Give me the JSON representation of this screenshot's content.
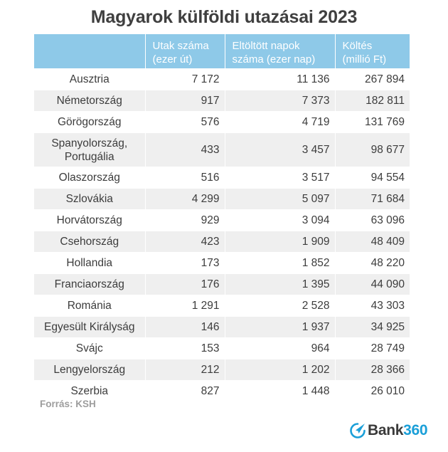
{
  "title": "Magyarok külföldi utazásai 2023",
  "columns": [
    "",
    "Utak száma\n(ezer út)",
    "Eltöltött napok\nszáma (ezer nap)",
    "Költés\n(millió Ft)"
  ],
  "source": "Forrás: KSH",
  "logo": {
    "word": "Bank",
    "number": "360",
    "accent_color": "#1a9fd8",
    "icon": "paper-plane-circle-icon"
  },
  "colors": {
    "header_bg": "#8ec9e8",
    "row_alt_bg": "#efefef"
  },
  "chart_data": {
    "type": "table",
    "title": "Magyarok külföldi utazásai 2023",
    "columns": [
      "",
      "Utak száma (ezer út)",
      "Eltöltött napok száma (ezer nap)",
      "Költés (millió Ft)"
    ],
    "rows": [
      [
        "Ausztria",
        "7 172",
        "11 136",
        "267 894"
      ],
      [
        "Németország",
        "917",
        "7 373",
        "182 811"
      ],
      [
        "Görögország",
        "576",
        "4 719",
        "131 769"
      ],
      [
        "Spanyolország,\nPortugália",
        "433",
        "3 457",
        "98 677"
      ],
      [
        "Olaszország",
        "516",
        "3 517",
        "94 554"
      ],
      [
        "Szlovákia",
        "4 299",
        "5 097",
        "71 684"
      ],
      [
        "Horvátország",
        "929",
        "3 094",
        "63 096"
      ],
      [
        "Csehország",
        "423",
        "1 909",
        "48 409"
      ],
      [
        "Hollandia",
        "173",
        "1 852",
        "48 220"
      ],
      [
        "Franciaország",
        "176",
        "1 395",
        "44 090"
      ],
      [
        "Románia",
        "1 291",
        "2 528",
        "43 303"
      ],
      [
        "Egyesült Királyság",
        "146",
        "1 937",
        "34 925"
      ],
      [
        "Svájc",
        "153",
        "964",
        "28 749"
      ],
      [
        "Lengyelország",
        "212",
        "1 202",
        "28 366"
      ],
      [
        "Szerbia",
        "827",
        "1 448",
        "26 010"
      ]
    ]
  }
}
